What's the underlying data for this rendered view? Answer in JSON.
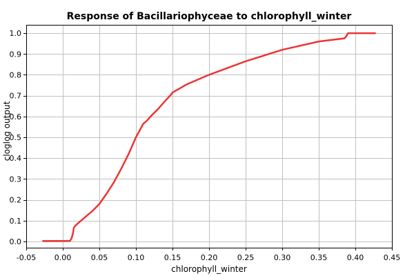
{
  "chart_data": {
    "type": "line",
    "title": "Response of Bacillariophyceae to chlorophyll_winter",
    "xlabel": "chlorophyll_winter",
    "ylabel": "cloglog output",
    "xlim": [
      -0.05,
      0.45
    ],
    "ylim": [
      -0.03,
      1.04
    ],
    "x_ticks": [
      -0.05,
      0.0,
      0.05,
      0.1,
      0.15,
      0.2,
      0.25,
      0.3,
      0.35,
      0.4,
      0.45
    ],
    "x_tick_labels": [
      "-0.05",
      "0.00",
      "0.05",
      "0.10",
      "0.15",
      "0.20",
      "0.25",
      "0.30",
      "0.35",
      "0.40",
      "0.45"
    ],
    "y_ticks": [
      0.0,
      0.1,
      0.2,
      0.3,
      0.4,
      0.5,
      0.6,
      0.7,
      0.8,
      0.9,
      1.0
    ],
    "y_tick_labels": [
      "0.0",
      "0.1",
      "0.2",
      "0.3",
      "0.4",
      "0.5",
      "0.6",
      "0.7",
      "0.8",
      "0.9",
      "1.0"
    ],
    "grid": true,
    "legend": "none",
    "series": [
      {
        "color": "#ee3333",
        "x": [
          -0.027,
          0.0,
          0.01,
          0.012,
          0.014,
          0.015,
          0.017,
          0.02,
          0.03,
          0.04,
          0.05,
          0.06,
          0.07,
          0.08,
          0.09,
          0.1,
          0.11,
          0.115,
          0.12,
          0.13,
          0.14,
          0.148,
          0.15,
          0.17,
          0.2,
          0.25,
          0.3,
          0.35,
          0.385,
          0.387,
          0.39,
          0.4,
          0.427
        ],
        "values": [
          0.002,
          0.002,
          0.003,
          0.015,
          0.04,
          0.065,
          0.075,
          0.085,
          0.115,
          0.145,
          0.18,
          0.23,
          0.285,
          0.35,
          0.42,
          0.5,
          0.565,
          0.58,
          0.6,
          0.635,
          0.675,
          0.705,
          0.715,
          0.755,
          0.8,
          0.865,
          0.92,
          0.96,
          0.975,
          0.982,
          1.0,
          1.0,
          1.0
        ]
      }
    ]
  }
}
